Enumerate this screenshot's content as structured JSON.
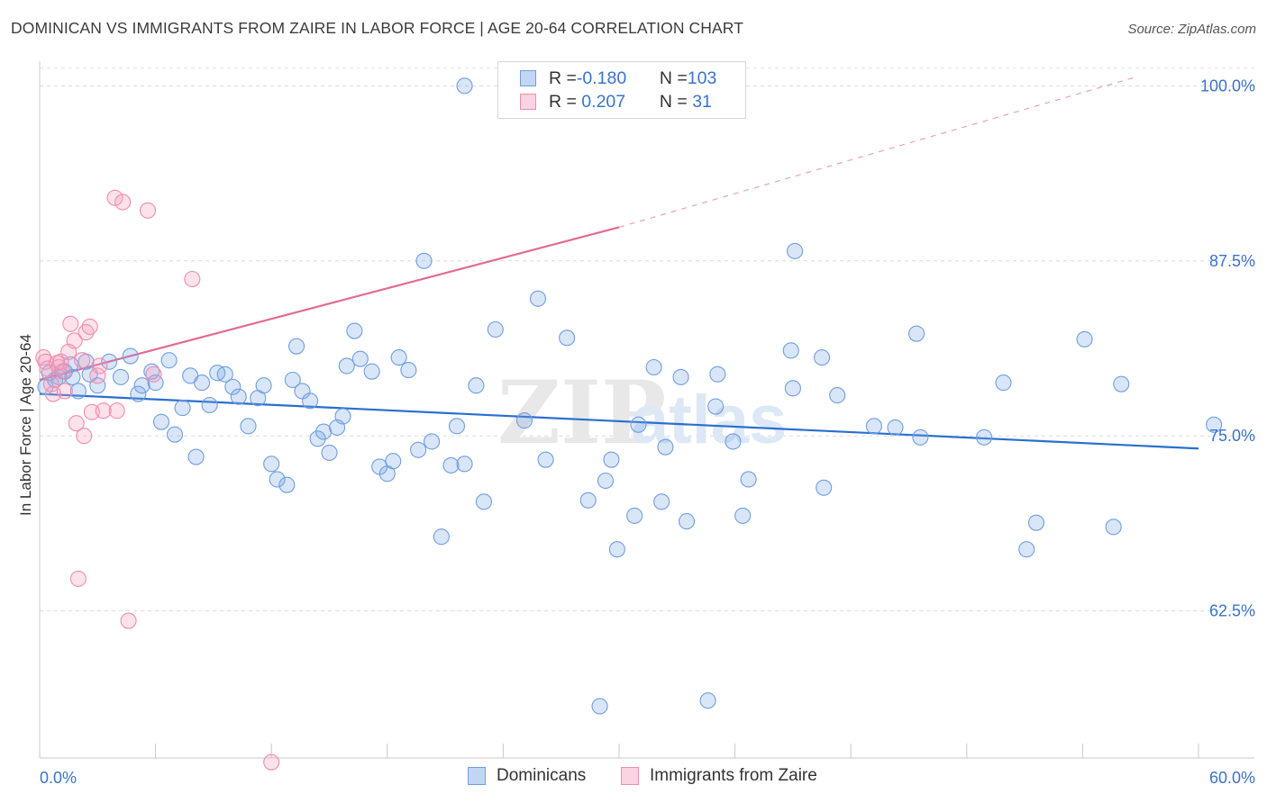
{
  "title": "DOMINICAN VS IMMIGRANTS FROM ZAIRE IN LABOR FORCE | AGE 20-64 CORRELATION CHART",
  "source": "Source: ZipAtlas.com",
  "watermark": {
    "part1": "ZIP",
    "part2": "atlas"
  },
  "legend": {
    "rows": [
      {
        "r_label": "R = ",
        "r_value": "-0.180",
        "n_label": "N = ",
        "n_value": "103",
        "color": "#6f9ee0"
      },
      {
        "r_label": "R = ",
        "r_value": " 0.207",
        "n_label": "N = ",
        "n_value": " 31",
        "color": "#f08cae"
      }
    ]
  },
  "chart_data": {
    "type": "scatter",
    "title": "DOMINICAN VS IMMIGRANTS FROM ZAIRE IN LABOR FORCE | AGE 20-64 CORRELATION CHART",
    "xlabel": "",
    "ylabel": "In Labor Force | Age 20-64",
    "xlim": [
      0,
      60
    ],
    "ylim": [
      52,
      101.5
    ],
    "x_tick_labels": [
      "0.0%",
      "60.0%"
    ],
    "y_ticks": [
      62.5,
      75.0,
      87.5,
      100.0
    ],
    "y_tick_labels": [
      "62.5%",
      "75.0%",
      "87.5%",
      "100.0%"
    ],
    "grid": "horizontal dashed",
    "legend_position": "top-center",
    "series": [
      {
        "name": "Dominicans",
        "color": "#6f9ee0",
        "fill": "rgba(120,165,230,0.28)",
        "trend": {
          "x": [
            0,
            60
          ],
          "y": [
            78.0,
            74.1
          ],
          "style": "solid"
        },
        "points": [
          [
            0.3,
            78.5
          ],
          [
            0.5,
            79.5
          ],
          [
            0.8,
            79.0
          ],
          [
            1.0,
            79.2
          ],
          [
            1.3,
            79.6
          ],
          [
            1.6,
            80.1
          ],
          [
            1.7,
            79.2
          ],
          [
            2.0,
            78.2
          ],
          [
            2.4,
            80.3
          ],
          [
            2.6,
            79.4
          ],
          [
            3.0,
            78.6
          ],
          [
            3.6,
            80.3
          ],
          [
            4.2,
            79.2
          ],
          [
            4.7,
            80.7
          ],
          [
            5.1,
            78.0
          ],
          [
            5.3,
            78.6
          ],
          [
            5.8,
            79.6
          ],
          [
            6.0,
            78.8
          ],
          [
            6.3,
            76.0
          ],
          [
            6.7,
            80.4
          ],
          [
            7.0,
            75.1
          ],
          [
            7.4,
            77.0
          ],
          [
            7.8,
            79.3
          ],
          [
            8.1,
            73.5
          ],
          [
            8.4,
            78.8
          ],
          [
            8.8,
            77.2
          ],
          [
            9.2,
            79.5
          ],
          [
            9.6,
            79.4
          ],
          [
            10.0,
            78.5
          ],
          [
            10.3,
            77.8
          ],
          [
            10.8,
            75.7
          ],
          [
            11.3,
            77.7
          ],
          [
            11.6,
            78.6
          ],
          [
            12.0,
            73.0
          ],
          [
            12.3,
            71.9
          ],
          [
            12.8,
            71.5
          ],
          [
            13.1,
            79.0
          ],
          [
            13.3,
            81.4
          ],
          [
            13.6,
            78.2
          ],
          [
            14.0,
            77.5
          ],
          [
            14.4,
            74.8
          ],
          [
            14.7,
            75.3
          ],
          [
            15.0,
            73.8
          ],
          [
            15.4,
            75.6
          ],
          [
            15.7,
            76.4
          ],
          [
            15.9,
            80.0
          ],
          [
            16.3,
            82.5
          ],
          [
            16.6,
            80.5
          ],
          [
            17.2,
            79.6
          ],
          [
            17.6,
            72.8
          ],
          [
            18.0,
            72.3
          ],
          [
            18.3,
            73.2
          ],
          [
            18.6,
            80.6
          ],
          [
            19.1,
            79.7
          ],
          [
            19.6,
            74.0
          ],
          [
            19.9,
            87.5
          ],
          [
            20.3,
            74.6
          ],
          [
            20.8,
            67.8
          ],
          [
            21.3,
            72.9
          ],
          [
            21.6,
            75.7
          ],
          [
            22.0,
            73.0
          ],
          [
            22.6,
            78.6
          ],
          [
            23.0,
            70.3
          ],
          [
            23.6,
            82.6
          ],
          [
            25.1,
            76.1
          ],
          [
            25.8,
            84.8
          ],
          [
            26.2,
            73.3
          ],
          [
            27.3,
            82.0
          ],
          [
            28.4,
            70.4
          ],
          [
            29.3,
            71.8
          ],
          [
            29.6,
            73.3
          ],
          [
            29.9,
            66.9
          ],
          [
            30.8,
            69.3
          ],
          [
            31.0,
            75.8
          ],
          [
            31.8,
            79.9
          ],
          [
            32.2,
            70.3
          ],
          [
            32.4,
            74.2
          ],
          [
            33.2,
            79.2
          ],
          [
            33.5,
            68.9
          ],
          [
            35.0,
            77.1
          ],
          [
            35.1,
            79.4
          ],
          [
            35.9,
            74.6
          ],
          [
            36.4,
            69.3
          ],
          [
            36.7,
            71.9
          ],
          [
            38.9,
            81.1
          ],
          [
            39.0,
            78.4
          ],
          [
            39.1,
            88.2
          ],
          [
            40.5,
            80.6
          ],
          [
            40.6,
            71.3
          ],
          [
            41.3,
            77.9
          ],
          [
            43.2,
            75.7
          ],
          [
            44.3,
            75.6
          ],
          [
            45.4,
            82.3
          ],
          [
            45.6,
            74.9
          ],
          [
            48.9,
            74.9
          ],
          [
            49.9,
            78.8
          ],
          [
            51.1,
            66.9
          ],
          [
            51.6,
            68.8
          ],
          [
            54.1,
            81.9
          ],
          [
            55.6,
            68.5
          ],
          [
            56.0,
            78.7
          ],
          [
            60.8,
            75.8
          ],
          [
            22.0,
            100.0
          ],
          [
            29.0,
            55.7
          ],
          [
            34.6,
            56.1
          ]
        ]
      },
      {
        "name": "Immigrants from Zaire",
        "color": "#f08cae",
        "fill": "rgba(245,160,190,0.30)",
        "trend": {
          "x": [
            0,
            30
          ],
          "y": [
            79.0,
            89.9
          ],
          "style": "solid",
          "extended_x": [
            30,
            60
          ],
          "extended_y": [
            89.9,
            101.0
          ],
          "extended_style": "dashed"
        },
        "points": [
          [
            0.2,
            80.6
          ],
          [
            0.3,
            80.3
          ],
          [
            0.4,
            79.8
          ],
          [
            0.6,
            78.7
          ],
          [
            0.7,
            78.0
          ],
          [
            0.9,
            80.2
          ],
          [
            1.0,
            79.9
          ],
          [
            1.1,
            80.3
          ],
          [
            1.2,
            79.6
          ],
          [
            1.3,
            78.2
          ],
          [
            1.5,
            81.0
          ],
          [
            1.6,
            83.0
          ],
          [
            1.8,
            81.8
          ],
          [
            1.9,
            75.9
          ],
          [
            2.0,
            64.8
          ],
          [
            2.2,
            80.4
          ],
          [
            2.3,
            75.0
          ],
          [
            2.4,
            82.4
          ],
          [
            2.6,
            82.8
          ],
          [
            2.7,
            76.7
          ],
          [
            3.0,
            79.3
          ],
          [
            3.1,
            80.0
          ],
          [
            3.3,
            76.8
          ],
          [
            3.9,
            92.0
          ],
          [
            4.0,
            76.8
          ],
          [
            4.3,
            91.7
          ],
          [
            4.6,
            61.8
          ],
          [
            5.6,
            91.1
          ],
          [
            5.9,
            79.4
          ],
          [
            7.9,
            86.2
          ],
          [
            12.0,
            51.7
          ]
        ]
      }
    ]
  },
  "bottom_legend": [
    "Dominicans",
    "Immigrants from Zaire"
  ],
  "axis": {
    "x_min_label": "0.0%",
    "x_max_label": "60.0%"
  }
}
